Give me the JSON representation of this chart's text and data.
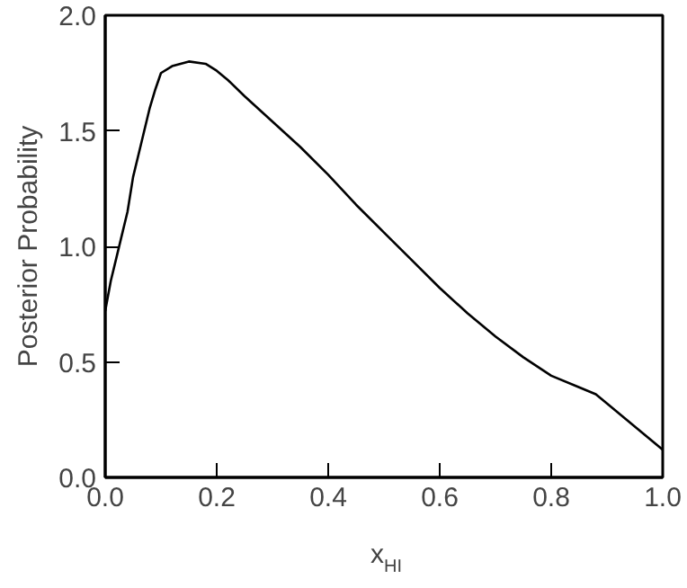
{
  "chart_data": {
    "type": "line",
    "xlabel": "x$_{HI}$",
    "ylabel": "Posterior Probability",
    "xlim": [
      0,
      1
    ],
    "ylim": [
      0,
      2
    ],
    "xticks": [
      {
        "value": 0,
        "label": "0.0"
      },
      0.2,
      0.4,
      0.6,
      0.8,
      {
        "value": 1,
        "label": "1.0"
      }
    ],
    "yticks": [
      {
        "value": 0,
        "label": "0.0"
      },
      0.5,
      {
        "value": 1,
        "label": "1.0"
      },
      1.5,
      {
        "value": 2,
        "label": "2.0"
      }
    ],
    "grid": false,
    "line_style": "solid",
    "marker": "none",
    "series": [
      {
        "color": "#000000",
        "x": [
          0,
          0.01,
          0.02,
          0.03,
          0.04,
          0.05,
          0.06,
          0.07,
          0.08,
          0.09,
          0.1,
          0.12,
          0.15,
          0.18,
          0.2,
          0.22,
          0.25,
          0.3,
          0.35,
          0.4,
          0.45,
          0.5,
          0.55,
          0.6,
          0.65,
          0.7,
          0.75,
          0.8,
          0.85,
          0.88,
          0.9,
          0.95,
          1.0
        ],
        "values": [
          0.72,
          0.85,
          0.95,
          1.05,
          1.15,
          1.3,
          1.4,
          1.5,
          1.6,
          1.68,
          1.75,
          1.78,
          1.8,
          1.79,
          1.76,
          1.72,
          1.65,
          1.54,
          1.43,
          1.31,
          1.18,
          1.06,
          0.94,
          0.82,
          0.71,
          0.61,
          0.52,
          0.44,
          0.39,
          0.36,
          0.32,
          0.22,
          0.12
        ]
      }
    ]
  }
}
